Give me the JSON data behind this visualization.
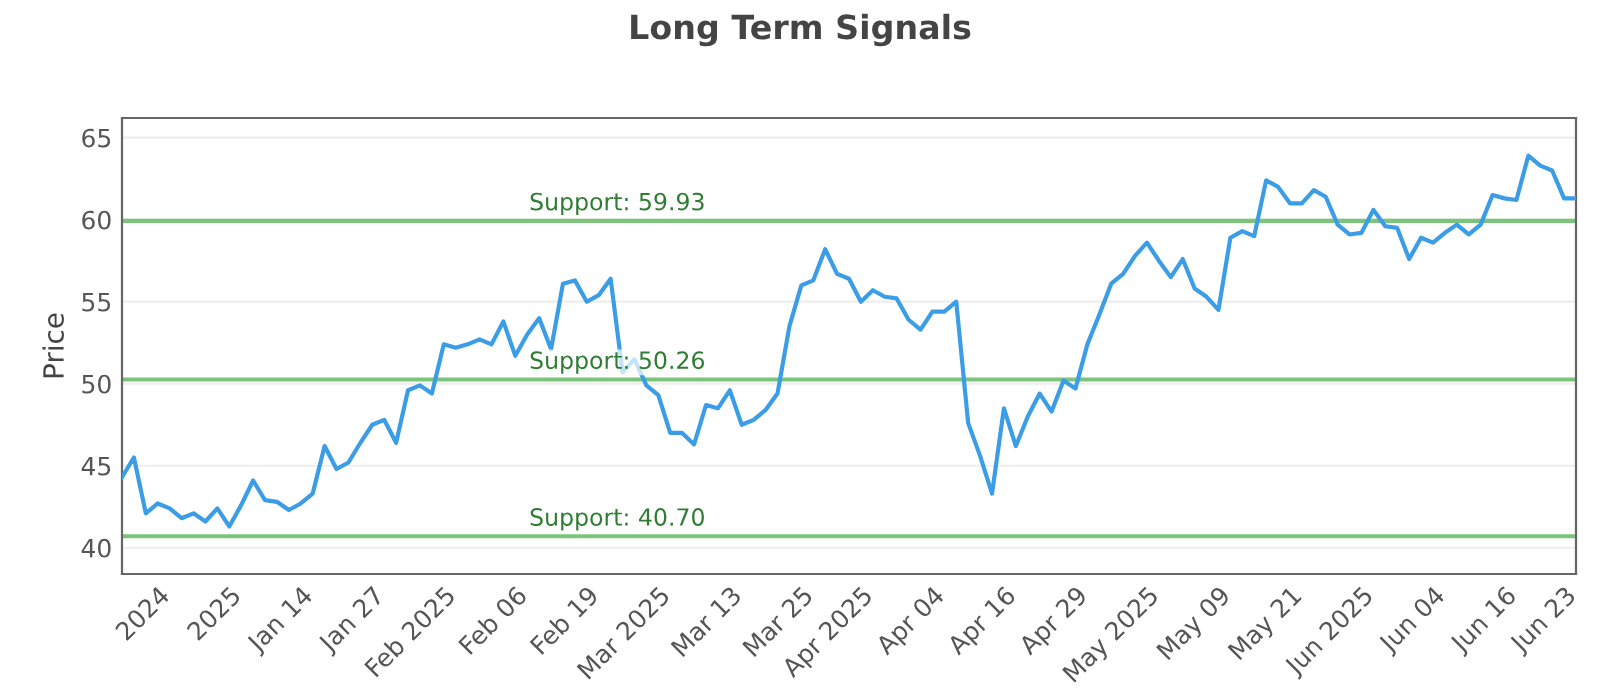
{
  "chart_data": {
    "type": "line",
    "title": "Long Term Signals",
    "ylabel": "Price",
    "categories": [
      null,
      null,
      null,
      "2024",
      null,
      null,
      null,
      null,
      null,
      "2025",
      null,
      null,
      null,
      null,
      null,
      "Jan 14",
      null,
      null,
      null,
      null,
      null,
      "Jan 27",
      null,
      null,
      null,
      null,
      null,
      "Feb 2025",
      null,
      null,
      null,
      null,
      null,
      "Feb 06",
      null,
      null,
      null,
      null,
      null,
      "Feb 19",
      null,
      null,
      null,
      null,
      null,
      "Mar 2025",
      null,
      null,
      null,
      null,
      null,
      "Mar 13",
      null,
      null,
      null,
      null,
      null,
      "Mar 25",
      null,
      null,
      null,
      null,
      "Apr 2025",
      null,
      null,
      null,
      null,
      null,
      "Apr 04",
      null,
      null,
      null,
      null,
      null,
      "Apr 16",
      null,
      null,
      null,
      null,
      null,
      "Apr 29",
      null,
      null,
      null,
      null,
      null,
      "May 2025",
      null,
      null,
      null,
      null,
      null,
      "May 09",
      null,
      null,
      null,
      null,
      null,
      "May 21",
      null,
      null,
      null,
      null,
      null,
      "Jun 2025",
      null,
      null,
      null,
      null,
      null,
      "Jun 04",
      null,
      null,
      null,
      null,
      null,
      "Jun 16",
      null,
      null,
      null,
      null,
      "Jun 23",
      null
    ],
    "series": [
      {
        "color": "#3b9de6",
        "values": [
          44.3,
          45.5,
          42.1,
          42.7,
          42.4,
          41.8,
          42.1,
          41.6,
          42.4,
          41.3,
          42.6,
          44.1,
          42.9,
          42.8,
          42.3,
          42.7,
          43.3,
          46.2,
          44.8,
          45.2,
          46.4,
          47.5,
          47.8,
          46.4,
          49.6,
          49.9,
          49.4,
          52.4,
          52.2,
          52.4,
          52.7,
          52.4,
          53.8,
          51.7,
          53.0,
          54.0,
          52.1,
          56.1,
          56.3,
          55.0,
          55.4,
          56.4,
          50.7,
          51.5,
          49.9,
          49.3,
          47.0,
          47.0,
          46.3,
          48.7,
          48.5,
          49.6,
          47.5,
          47.8,
          48.4,
          49.4,
          53.5,
          56.0,
          56.3,
          58.2,
          56.7,
          56.4,
          55.0,
          55.7,
          55.3,
          55.2,
          53.9,
          53.3,
          54.4,
          54.4,
          55.0,
          47.6,
          45.6,
          43.3,
          48.5,
          46.2,
          48.0,
          49.4,
          48.3,
          50.2,
          49.7,
          52.4,
          54.2,
          56.1,
          56.7,
          57.8,
          58.6,
          57.5,
          56.5,
          57.6,
          55.8,
          55.3,
          54.5,
          58.9,
          59.3,
          59.0,
          62.4,
          62.0,
          61.0,
          61.0,
          61.8,
          61.4,
          59.7,
          59.1,
          59.2,
          60.6,
          59.6,
          59.5,
          57.6,
          58.9,
          58.6,
          59.2,
          59.7,
          59.1,
          59.7,
          61.5,
          61.3,
          61.2,
          63.9,
          63.3,
          63.0,
          61.3,
          61.3
        ]
      }
    ],
    "ylim": [
      38.4,
      66.2
    ],
    "yticks": [
      40,
      45,
      50,
      55,
      60,
      65
    ],
    "grid": "y",
    "ref_lines": [
      {
        "axis": "y",
        "value": 59.93,
        "label": "Support: 59.93",
        "color": "#7cc47c"
      },
      {
        "axis": "y",
        "value": 50.26,
        "label": "Support: 50.26",
        "color": "#7cc47c"
      },
      {
        "axis": "y",
        "value": 40.7,
        "label": "Support: 40.70",
        "color": "#7cc47c"
      }
    ]
  }
}
